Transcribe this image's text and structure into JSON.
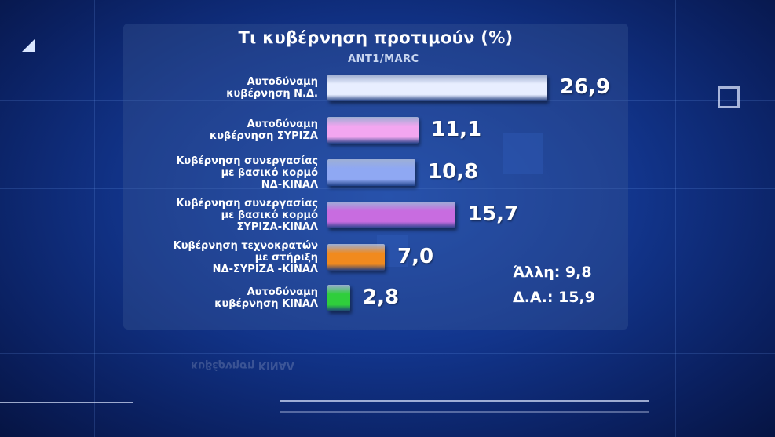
{
  "chart_data": {
    "type": "bar",
    "orientation": "horizontal",
    "title": "Τι κυβέρνηση προτιμούν (%)",
    "source": "ANT1/MARC",
    "categories": [
      [
        "Αυτοδύναμη",
        "κυβέρνηση Ν.Δ."
      ],
      [
        "Αυτοδύναμη",
        "κυβέρνηση ΣΥΡΙΖΑ"
      ],
      [
        "Κυβέρνηση συνεργασίας",
        "με βασικό κορμό",
        "ΝΔ-ΚΙΝΑΛ"
      ],
      [
        "Κυβέρνηση συνεργασίας",
        "με βασικό κορμό",
        "ΣΥΡΙΖΑ-ΚΙΝΑΛ"
      ],
      [
        "Κυβέρνηση τεχνοκρατών",
        "με στήριξη",
        "ΝΔ-ΣΥΡΙΖΑ -ΚΙΝΑΛ"
      ],
      [
        "Αυτοδύναμη",
        "κυβέρνηση ΚΙΝΑΛ"
      ]
    ],
    "values": [
      26.9,
      11.1,
      10.8,
      15.7,
      7.0,
      2.8
    ],
    "value_labels": [
      "26,9",
      "11,1",
      "10,8",
      "15,7",
      "7,0",
      "2,8"
    ],
    "colors": [
      "#e8eeff",
      "#f3a6f0",
      "#8fa8f3",
      "#c86ce0",
      "#f18a1e",
      "#2fce3c"
    ],
    "notes": [
      "Άλλη: 9,8",
      "Δ.Α.: 15,9"
    ]
  }
}
